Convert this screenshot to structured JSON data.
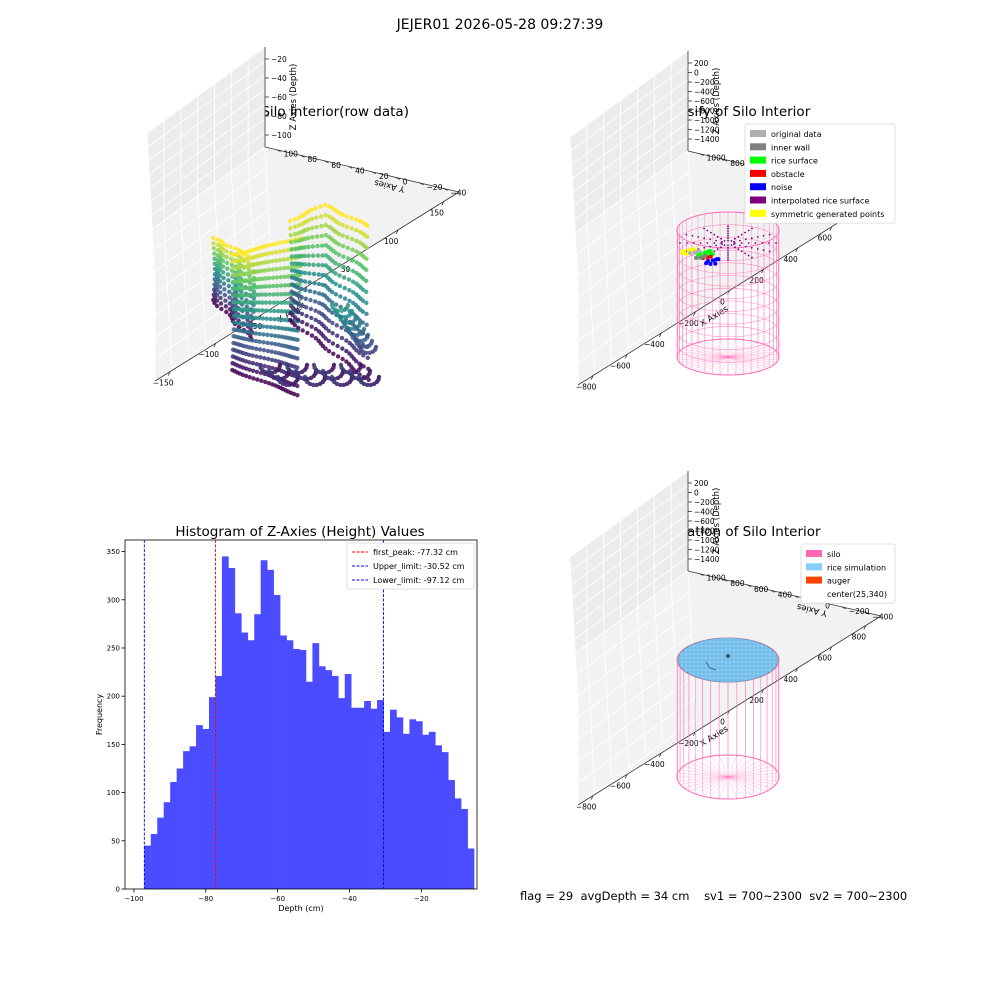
{
  "figure": {
    "suptitle": "JEJER01 2026-05-28 09:27:39",
    "stats": {
      "flag": "flag = 29",
      "avg_depth": "avgDepth = 34 cm",
      "sv1": "sv1 = 700~2300",
      "sv2": "sv2 = 700~2300"
    }
  },
  "colors": {
    "bar": "#4b4bff",
    "first_peak": "#ff0000",
    "limit": "#0000ff",
    "silo": "#ff69b4",
    "rice": "#87cefa",
    "auger": "#ff4500",
    "original": "#b0b0b0",
    "inner_wall": "#808080",
    "rice_surface": "#00ff00",
    "obstacle": "#ff0000",
    "noise": "#0000ff",
    "interpolated": "#800080",
    "symmetric": "#ffff00"
  },
  "chart_data": [
    {
      "type": "scatter3d",
      "title": "3D Plot of Silo Interior(row data)",
      "xlabel": "X Axies",
      "ylabel": "Y Axies",
      "zlabel": "Z Axies (Depth)",
      "x_ticks": [
        "−150",
        "−100",
        "−50",
        "0",
        "50",
        "100",
        "150"
      ],
      "y_ticks": [
        "−40",
        "−20",
        "0",
        "20",
        "40",
        "60",
        "80",
        "100"
      ],
      "z_ticks": [
        "−20",
        "−40",
        "−60",
        "−80",
        "−100"
      ],
      "xlim": [
        -170,
        170
      ],
      "ylim": [
        -50,
        110
      ],
      "zlim": [
        -105,
        -5
      ],
      "colormap": "viridis"
    },
    {
      "type": "scatter3d",
      "title": "3D classify of Silo Interior",
      "xlabel": "X Axies",
      "ylabel": "Y Axies",
      "zlabel": "Z Axies (Depth)",
      "x_ticks": [
        "−800",
        "−600",
        "−400",
        "−200",
        "0",
        "200",
        "400",
        "600",
        "800"
      ],
      "y_ticks": [
        "−400",
        "−200",
        "0",
        "200",
        "400",
        "600",
        "800",
        "1000"
      ],
      "z_ticks": [
        "200",
        "0",
        "−200",
        "−400",
        "−600",
        "−800",
        "−1000",
        "−1200",
        "−1400"
      ],
      "legend": [
        {
          "label": "original data",
          "color": "#b0b0b0"
        },
        {
          "label": "inner wall",
          "color": "#808080"
        },
        {
          "label": "rice surface",
          "color": "#00ff00"
        },
        {
          "label": "obstacle",
          "color": "#ff0000"
        },
        {
          "label": "noise",
          "color": "#0000ff"
        },
        {
          "label": "interpolated rice surface",
          "color": "#800080"
        },
        {
          "label": "symmetric generated points",
          "color": "#ffff00"
        }
      ],
      "legend_loc": "upper right"
    },
    {
      "type": "bar",
      "title": "Histogram of Z-Axies (Height) Values",
      "xlabel": "Depth (cm)",
      "ylabel": "Frequency",
      "xlim": [
        -102.5,
        -4.5
      ],
      "ylim": [
        0,
        362
      ],
      "x_ticks": [
        -100,
        -80,
        -60,
        -40,
        -20
      ],
      "y_ticks": [
        0,
        50,
        100,
        150,
        200,
        250,
        300,
        350
      ],
      "bin_start": -97.12,
      "bin_width": 1.8,
      "values": [
        45,
        57,
        74,
        90,
        111,
        125,
        143,
        148,
        170,
        166,
        199,
        221,
        345,
        333,
        286,
        266,
        258,
        285,
        341,
        331,
        305,
        263,
        258,
        249,
        248,
        215,
        255,
        231,
        227,
        221,
        198,
        223,
        188,
        188,
        195,
        187,
        196,
        163,
        186,
        178,
        161,
        176,
        174,
        160,
        163,
        149,
        142,
        113,
        94,
        83,
        42
      ],
      "vlines": [
        {
          "label": "first_peak: -77.32 cm",
          "x": -77.32,
          "color": "#ff0000"
        },
        {
          "label": "Upper_limit: -30.52 cm",
          "x": -30.52,
          "color": "#0000ff"
        },
        {
          "label": "Lower_limit: -97.12 cm",
          "x": -97.12,
          "color": "#0000ff"
        }
      ],
      "legend_loc": "upper right"
    },
    {
      "type": "scatter3d",
      "title": "3D simulation of Silo Interior",
      "xlabel": "X Axies",
      "ylabel": "Y Axies",
      "zlabel": "Z Axies (Depth)",
      "x_ticks": [
        "−800",
        "−600",
        "−400",
        "−200",
        "0",
        "200",
        "400",
        "600",
        "800"
      ],
      "y_ticks": [
        "−400",
        "−200",
        "0",
        "200",
        "400",
        "600",
        "800",
        "1000"
      ],
      "z_ticks": [
        "200",
        "0",
        "−200",
        "−400",
        "−600",
        "−800",
        "−1000",
        "−1200",
        "−1400"
      ],
      "legend": [
        {
          "label": "silo",
          "color": "#ff69b4"
        },
        {
          "label": "rice simulation",
          "color": "#87cefa"
        },
        {
          "label": "auger",
          "color": "#ff4500"
        },
        {
          "label": "center(25,340)",
          "color": ""
        }
      ],
      "legend_loc": "upper right"
    }
  ]
}
